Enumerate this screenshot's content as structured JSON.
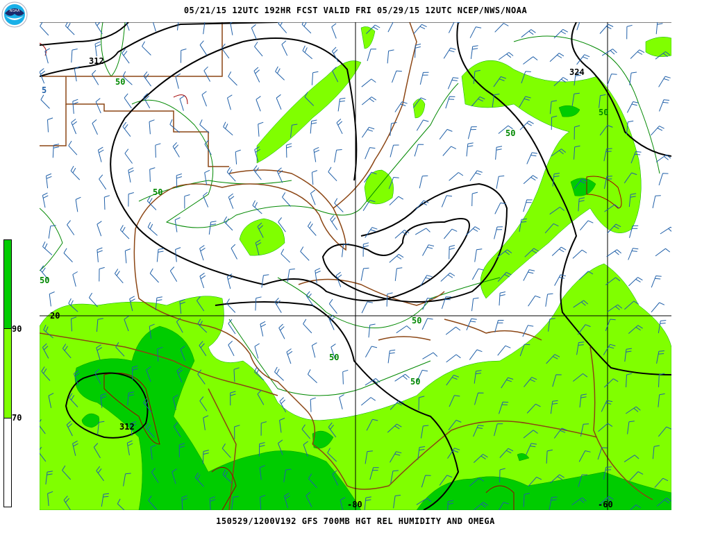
{
  "header": {
    "title": "05/21/15 12UTC   192HR   FCST VALID FRI 05/29/15 12UTC   NCEP/NWS/NOAA",
    "logo_text": "NOAA"
  },
  "footer": {
    "title": "150529/1200V192 GFS 700MB HGT REL HUMIDITY AND OMEGA"
  },
  "colorbar": {
    "labels": [
      "90",
      "70"
    ],
    "colors": {
      "high": "#00cc00",
      "mid": "#80ff00",
      "low": "#ffffff"
    }
  },
  "map": {
    "colors": {
      "height_contour": "#000000",
      "rh_contour": "#008800",
      "coast": "#8b4513",
      "omega": "#a00000",
      "barbs": "#1f5fa8",
      "grid": "#000000"
    },
    "height_labels": [
      "312",
      "324",
      "312"
    ],
    "rh_labels": [
      "50",
      "50",
      "50",
      "50",
      "50",
      "50",
      "50",
      "50"
    ],
    "omega_label": "5",
    "left_edge_label": "50",
    "grid_labels": {
      "lat_20": "20",
      "lon_80": "-80",
      "lon_60": "-60"
    }
  }
}
